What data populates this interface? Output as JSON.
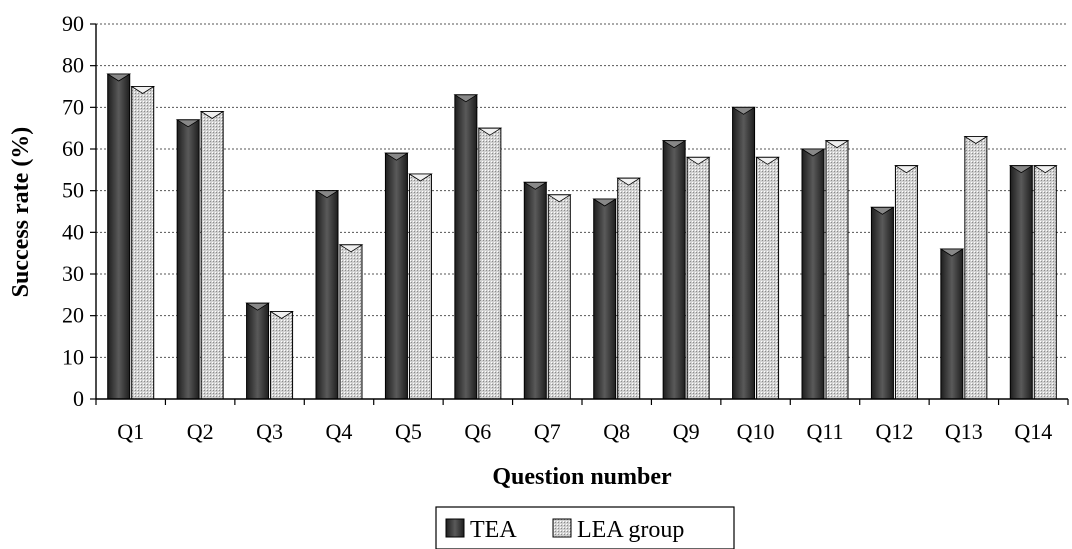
{
  "chart_data": {
    "type": "bar",
    "categories": [
      "Q1",
      "Q2",
      "Q3",
      "Q4",
      "Q5",
      "Q6",
      "Q7",
      "Q8",
      "Q9",
      "Q10",
      "Q11",
      "Q12",
      "Q13",
      "Q14"
    ],
    "series": [
      {
        "name": "TEA",
        "values": [
          78,
          67,
          23,
          50,
          59,
          73,
          52,
          48,
          62,
          70,
          60,
          46,
          36,
          56
        ],
        "color": "#3a3a3a"
      },
      {
        "name": "LEA group",
        "values": [
          75,
          69,
          21,
          37,
          54,
          65,
          49,
          53,
          58,
          58,
          62,
          56,
          63,
          56
        ],
        "color": "#c8c8c8"
      }
    ],
    "xlabel": "Question number",
    "ylabel": "Success rate (%)",
    "ylim": [
      0,
      90
    ],
    "yticks": [
      0,
      10,
      20,
      30,
      40,
      50,
      60,
      70,
      80,
      90
    ],
    "grid": "horizontal-dotted",
    "legend_position": "bottom-center"
  }
}
